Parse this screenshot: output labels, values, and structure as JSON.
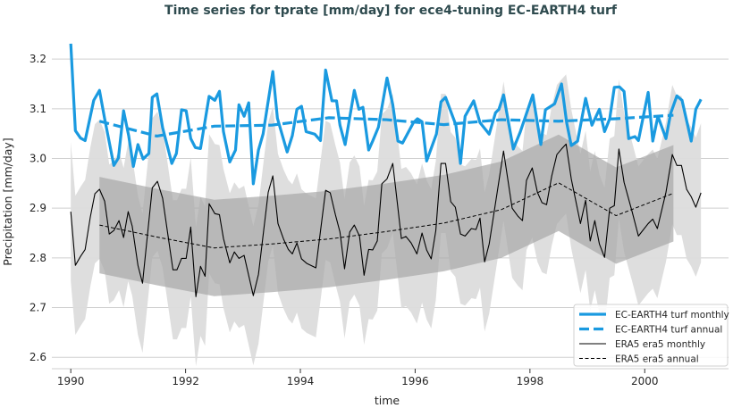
{
  "chart_data": {
    "type": "line",
    "title": "Time series for tprate [mm/day] for ece4-tuning EC-EARTH4 turf",
    "xlabel": "time",
    "ylabel": "Precipitation [mm/day]",
    "xlim": [
      1989.67,
      2001.46
    ],
    "ylim": [
      2.577,
      3.247
    ],
    "xticks": [
      1990,
      1992,
      1994,
      1996,
      1998,
      2000
    ],
    "xtick_labels": [
      "1990",
      "1992",
      "1994",
      "1996",
      "1998",
      "2000"
    ],
    "yticks": [
      2.6,
      2.7,
      2.8,
      2.9,
      3.0,
      3.1,
      3.2
    ],
    "ytick_labels": [
      "2.6",
      "2.7",
      "2.8",
      "2.9",
      "3.0",
      "3.1",
      "3.2"
    ],
    "grid": "horizontal",
    "legend_position": "lower-right",
    "colors": {
      "model": "#1a9ae0",
      "era5": "#000000",
      "band_monthly": "#dcdcdc",
      "band_annual": "#a8a8a8",
      "title": "#2f4b4f"
    },
    "bands": {
      "monthly_spread": 0.14,
      "annual_spread": 0.097
    },
    "series": [
      {
        "name": "EC-EARTH4 turf monthly",
        "style": "solid-thick",
        "color": "#1a9ae0",
        "points": [
          [
            1990.0,
            3.231
          ],
          [
            1990.08,
            3.056
          ],
          [
            1990.17,
            3.041
          ],
          [
            1990.25,
            3.036
          ],
          [
            1990.4,
            3.117
          ],
          [
            1990.5,
            3.137
          ],
          [
            1990.59,
            3.08
          ],
          [
            1990.75,
            2.986
          ],
          [
            1990.83,
            3.001
          ],
          [
            1990.92,
            3.096
          ],
          [
            1991.01,
            3.045
          ],
          [
            1991.09,
            2.984
          ],
          [
            1991.17,
            3.028
          ],
          [
            1991.26,
            2.999
          ],
          [
            1991.36,
            3.01
          ],
          [
            1991.42,
            3.123
          ],
          [
            1991.5,
            3.13
          ],
          [
            1991.6,
            3.062
          ],
          [
            1991.76,
            2.99
          ],
          [
            1991.84,
            3.01
          ],
          [
            1991.93,
            3.098
          ],
          [
            1992.01,
            3.096
          ],
          [
            1992.09,
            3.04
          ],
          [
            1992.17,
            3.022
          ],
          [
            1992.26,
            3.02
          ],
          [
            1992.41,
            3.125
          ],
          [
            1992.51,
            3.117
          ],
          [
            1992.59,
            3.135
          ],
          [
            1992.66,
            3.054
          ],
          [
            1992.77,
            2.993
          ],
          [
            1992.87,
            3.017
          ],
          [
            1992.93,
            3.108
          ],
          [
            1993.02,
            3.085
          ],
          [
            1993.1,
            3.112
          ],
          [
            1993.18,
            2.949
          ],
          [
            1993.27,
            3.017
          ],
          [
            1993.35,
            3.049
          ],
          [
            1993.52,
            3.175
          ],
          [
            1993.6,
            3.081
          ],
          [
            1993.77,
            3.013
          ],
          [
            1993.86,
            3.046
          ],
          [
            1993.94,
            3.099
          ],
          [
            1994.02,
            3.105
          ],
          [
            1994.1,
            3.054
          ],
          [
            1994.25,
            3.049
          ],
          [
            1994.35,
            3.036
          ],
          [
            1994.44,
            3.178
          ],
          [
            1994.55,
            3.116
          ],
          [
            1994.63,
            3.116
          ],
          [
            1994.69,
            3.067
          ],
          [
            1994.78,
            3.028
          ],
          [
            1994.94,
            3.137
          ],
          [
            1995.02,
            3.099
          ],
          [
            1995.09,
            3.103
          ],
          [
            1995.19,
            3.017
          ],
          [
            1995.26,
            3.035
          ],
          [
            1995.36,
            3.063
          ],
          [
            1995.51,
            3.162
          ],
          [
            1995.61,
            3.108
          ],
          [
            1995.7,
            3.035
          ],
          [
            1995.78,
            3.031
          ],
          [
            1995.97,
            3.072
          ],
          [
            1996.04,
            3.08
          ],
          [
            1996.12,
            3.074
          ],
          [
            1996.2,
            2.995
          ],
          [
            1996.37,
            3.049
          ],
          [
            1996.45,
            3.114
          ],
          [
            1996.53,
            3.123
          ],
          [
            1996.71,
            3.067
          ],
          [
            1996.79,
            2.99
          ],
          [
            1996.87,
            3.085
          ],
          [
            1997.02,
            3.116
          ],
          [
            1997.13,
            3.072
          ],
          [
            1997.29,
            3.049
          ],
          [
            1997.4,
            3.092
          ],
          [
            1997.46,
            3.099
          ],
          [
            1997.54,
            3.128
          ],
          [
            1997.71,
            3.019
          ],
          [
            1997.83,
            3.053
          ],
          [
            1998.05,
            3.128
          ],
          [
            1998.19,
            3.028
          ],
          [
            1998.27,
            3.098
          ],
          [
            1998.43,
            3.11
          ],
          [
            1998.55,
            3.15
          ],
          [
            1998.64,
            3.072
          ],
          [
            1998.72,
            3.026
          ],
          [
            1998.83,
            3.035
          ],
          [
            1998.97,
            3.121
          ],
          [
            1999.08,
            3.067
          ],
          [
            1999.21,
            3.099
          ],
          [
            1999.3,
            3.054
          ],
          [
            1999.39,
            3.08
          ],
          [
            1999.47,
            3.143
          ],
          [
            1999.56,
            3.144
          ],
          [
            1999.64,
            3.135
          ],
          [
            1999.72,
            3.04
          ],
          [
            1999.83,
            3.044
          ],
          [
            1999.89,
            3.036
          ],
          [
            2000.06,
            3.133
          ],
          [
            2000.14,
            3.035
          ],
          [
            2000.23,
            3.085
          ],
          [
            2000.37,
            3.04
          ],
          [
            2000.45,
            3.09
          ],
          [
            2000.56,
            3.126
          ],
          [
            2000.65,
            3.117
          ],
          [
            2000.81,
            3.035
          ],
          [
            2000.89,
            3.099
          ],
          [
            2000.98,
            3.119
          ]
        ]
      },
      {
        "name": "EC-EARTH4 turf annual",
        "style": "dashed-thick",
        "color": "#1a9ae0",
        "points": [
          [
            1990.5,
            3.075
          ],
          [
            1991.5,
            3.045
          ],
          [
            1992.5,
            3.065
          ],
          [
            1993.5,
            3.067
          ],
          [
            1994.5,
            3.082
          ],
          [
            1995.5,
            3.078
          ],
          [
            1996.5,
            3.068
          ],
          [
            1997.5,
            3.078
          ],
          [
            1998.5,
            3.075
          ],
          [
            1999.5,
            3.08
          ],
          [
            2000.5,
            3.087
          ]
        ]
      },
      {
        "name": "ERA5 era5 monthly",
        "style": "solid-thin",
        "color": "#000000",
        "points": [
          [
            1990.0,
            2.893
          ],
          [
            1990.08,
            2.785
          ],
          [
            1990.17,
            2.803
          ],
          [
            1990.25,
            2.817
          ],
          [
            1990.34,
            2.882
          ],
          [
            1990.42,
            2.929
          ],
          [
            1990.5,
            2.938
          ],
          [
            1990.59,
            2.914
          ],
          [
            1990.67,
            2.848
          ],
          [
            1990.75,
            2.855
          ],
          [
            1990.84,
            2.875
          ],
          [
            1990.92,
            2.841
          ],
          [
            1991.0,
            2.893
          ],
          [
            1991.07,
            2.864
          ],
          [
            1991.17,
            2.785
          ],
          [
            1991.25,
            2.749
          ],
          [
            1991.42,
            2.941
          ],
          [
            1991.51,
            2.954
          ],
          [
            1991.6,
            2.92
          ],
          [
            1991.78,
            2.776
          ],
          [
            1991.85,
            2.776
          ],
          [
            1991.93,
            2.799
          ],
          [
            1992.01,
            2.799
          ],
          [
            1992.09,
            2.862
          ],
          [
            1992.18,
            2.722
          ],
          [
            1992.26,
            2.783
          ],
          [
            1992.34,
            2.763
          ],
          [
            1992.41,
            2.909
          ],
          [
            1992.51,
            2.889
          ],
          [
            1992.59,
            2.887
          ],
          [
            1992.66,
            2.839
          ],
          [
            1992.77,
            2.79
          ],
          [
            1992.85,
            2.812
          ],
          [
            1992.93,
            2.799
          ],
          [
            1993.02,
            2.805
          ],
          [
            1993.18,
            2.724
          ],
          [
            1993.27,
            2.767
          ],
          [
            1993.44,
            2.932
          ],
          [
            1993.52,
            2.965
          ],
          [
            1993.61,
            2.869
          ],
          [
            1993.71,
            2.837
          ],
          [
            1993.79,
            2.817
          ],
          [
            1993.86,
            2.808
          ],
          [
            1993.94,
            2.83
          ],
          [
            1994.02,
            2.798
          ],
          [
            1994.11,
            2.789
          ],
          [
            1994.27,
            2.78
          ],
          [
            1994.44,
            2.936
          ],
          [
            1994.52,
            2.931
          ],
          [
            1994.61,
            2.887
          ],
          [
            1994.69,
            2.852
          ],
          [
            1994.77,
            2.778
          ],
          [
            1994.86,
            2.852
          ],
          [
            1994.94,
            2.866
          ],
          [
            1995.03,
            2.844
          ],
          [
            1995.11,
            2.765
          ],
          [
            1995.19,
            2.817
          ],
          [
            1995.26,
            2.816
          ],
          [
            1995.34,
            2.834
          ],
          [
            1995.42,
            2.949
          ],
          [
            1995.51,
            2.959
          ],
          [
            1995.61,
            2.99
          ],
          [
            1995.7,
            2.9
          ],
          [
            1995.76,
            2.839
          ],
          [
            1995.84,
            2.843
          ],
          [
            1995.93,
            2.83
          ],
          [
            1996.03,
            2.808
          ],
          [
            1996.12,
            2.85
          ],
          [
            1996.2,
            2.816
          ],
          [
            1996.28,
            2.798
          ],
          [
            1996.36,
            2.855
          ],
          [
            1996.45,
            2.99
          ],
          [
            1996.53,
            2.99
          ],
          [
            1996.62,
            2.913
          ],
          [
            1996.7,
            2.902
          ],
          [
            1996.79,
            2.848
          ],
          [
            1996.87,
            2.844
          ],
          [
            1996.98,
            2.859
          ],
          [
            1997.06,
            2.857
          ],
          [
            1997.13,
            2.88
          ],
          [
            1997.21,
            2.792
          ],
          [
            1997.29,
            2.828
          ],
          [
            1997.54,
            3.015
          ],
          [
            1997.69,
            2.9
          ],
          [
            1997.79,
            2.884
          ],
          [
            1997.87,
            2.875
          ],
          [
            1997.94,
            2.956
          ],
          [
            1998.04,
            2.981
          ],
          [
            1998.13,
            2.932
          ],
          [
            1998.21,
            2.911
          ],
          [
            1998.29,
            2.907
          ],
          [
            1998.38,
            2.965
          ],
          [
            1998.47,
            3.008
          ],
          [
            1998.55,
            3.019
          ],
          [
            1998.63,
            3.029
          ],
          [
            1998.72,
            2.959
          ],
          [
            1998.88,
            2.869
          ],
          [
            1998.97,
            2.916
          ],
          [
            1999.05,
            2.834
          ],
          [
            1999.13,
            2.875
          ],
          [
            1999.21,
            2.828
          ],
          [
            1999.3,
            2.801
          ],
          [
            1999.39,
            2.9
          ],
          [
            1999.47,
            2.905
          ],
          [
            1999.55,
            3.019
          ],
          [
            1999.64,
            2.952
          ],
          [
            1999.78,
            2.893
          ],
          [
            1999.89,
            2.844
          ],
          [
            2000.06,
            2.869
          ],
          [
            2000.14,
            2.878
          ],
          [
            2000.22,
            2.859
          ],
          [
            2000.37,
            2.932
          ],
          [
            2000.48,
            3.008
          ],
          [
            2000.56,
            2.986
          ],
          [
            2000.64,
            2.986
          ],
          [
            2000.73,
            2.938
          ],
          [
            2000.81,
            2.923
          ],
          [
            2000.89,
            2.902
          ],
          [
            2000.98,
            2.931
          ]
        ]
      },
      {
        "name": "ERA5 era5 annual",
        "style": "dashed-thin",
        "color": "#000000",
        "points": [
          [
            1990.5,
            2.866
          ],
          [
            1991.5,
            2.842
          ],
          [
            1992.5,
            2.82
          ],
          [
            1993.5,
            2.828
          ],
          [
            1994.5,
            2.838
          ],
          [
            1995.5,
            2.853
          ],
          [
            1996.5,
            2.87
          ],
          [
            1997.5,
            2.897
          ],
          [
            1998.5,
            2.951
          ],
          [
            1999.5,
            2.885
          ],
          [
            2000.5,
            2.93
          ]
        ]
      }
    ]
  }
}
